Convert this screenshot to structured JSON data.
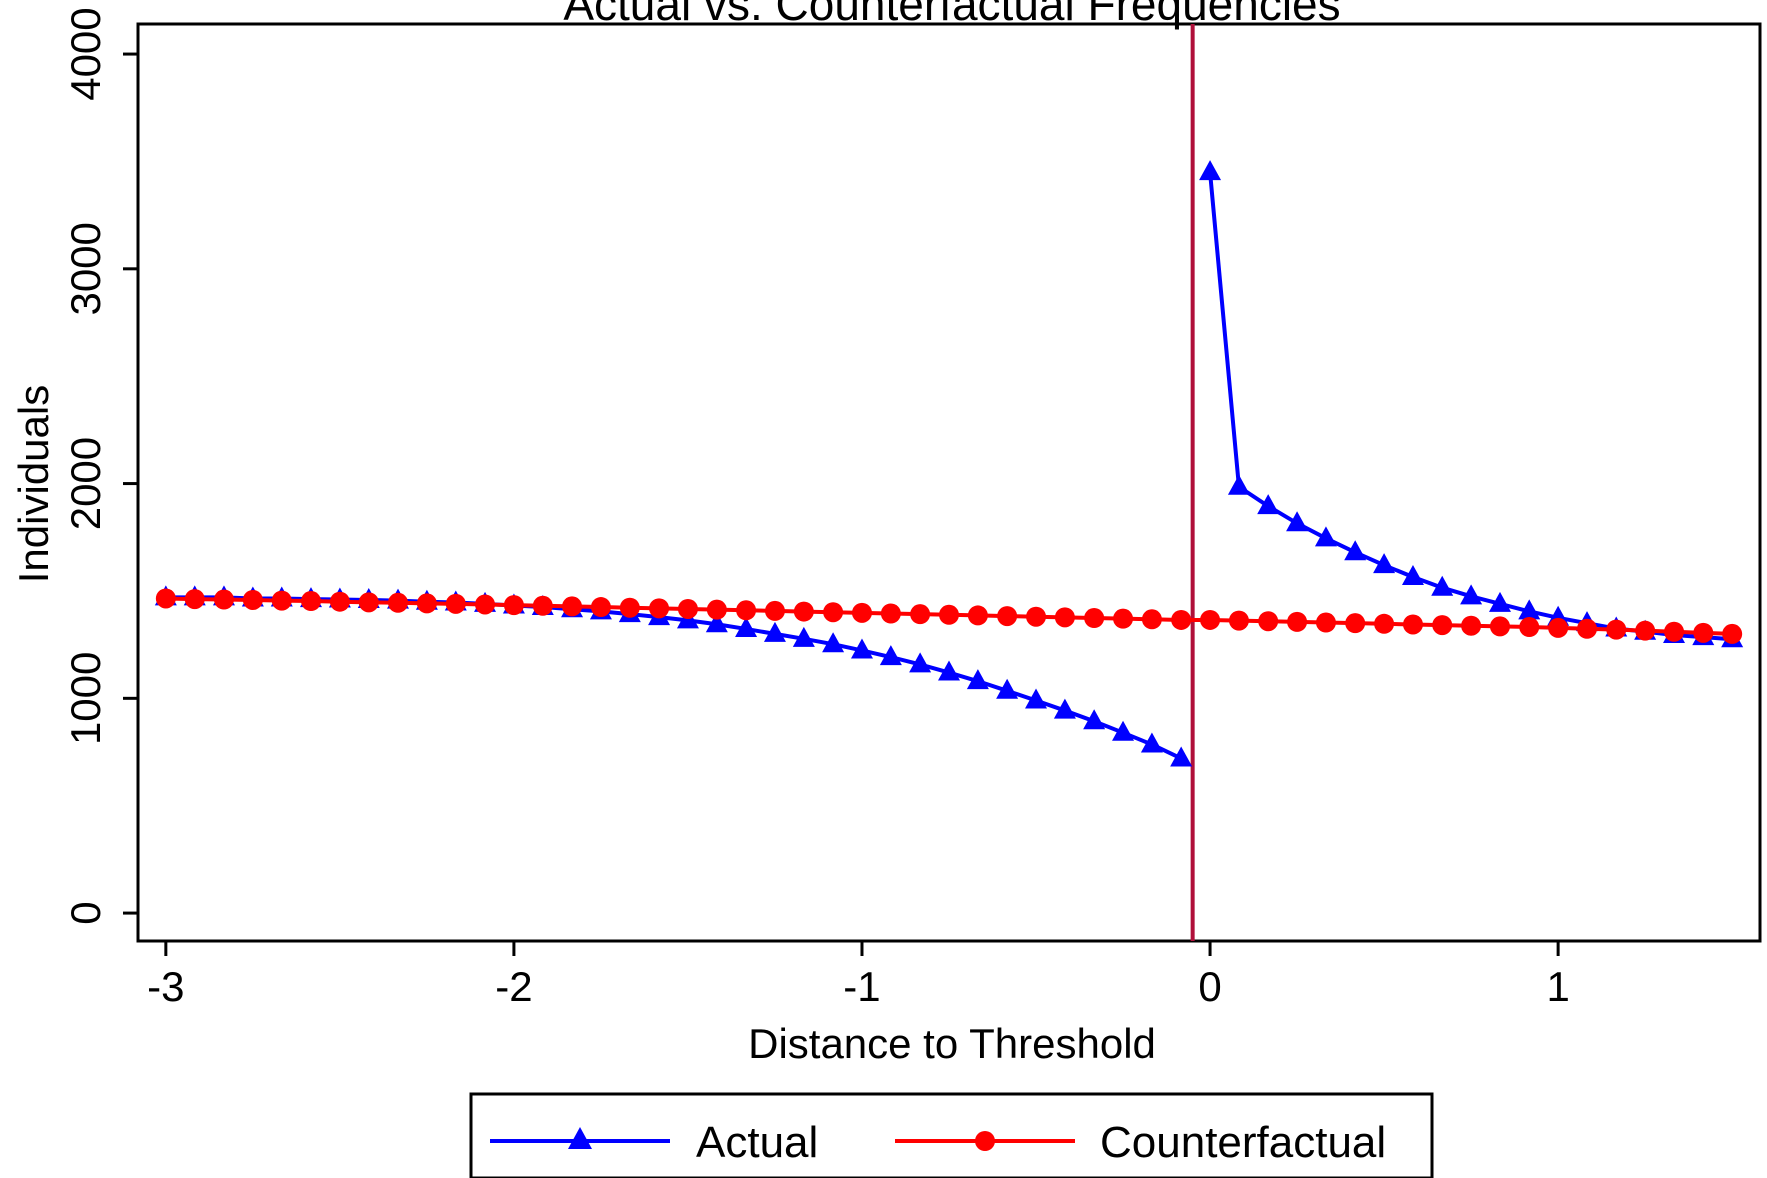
{
  "chart_data": {
    "type": "line",
    "title": "Actual vs. Counterfactual Frequencies",
    "xlabel": "Distance to Threshold",
    "ylabel": "Individuals",
    "xlim": [
      -3.08,
      1.58
    ],
    "ylim": [
      -130,
      4140
    ],
    "xticks": [
      -3,
      -2,
      -1,
      0,
      1
    ],
    "yticks": [
      0,
      1000,
      2000,
      3000,
      4000
    ],
    "xtick_labels": [
      "-3",
      "-2",
      "-1",
      "0",
      "1"
    ],
    "ytick_labels": [
      "0",
      "1000",
      "2000",
      "3000",
      "4000"
    ],
    "grid": false,
    "legend_position": "bottom",
    "threshold_line": {
      "x": -0.05,
      "color": "#b0103a"
    },
    "series": [
      {
        "name": "Actual",
        "color": "#0000ff",
        "marker": "triangle",
        "segments": [
          {
            "x": [
              -3.0,
              -2.917,
              -2.833,
              -2.75,
              -2.667,
              -2.583,
              -2.5,
              -2.417,
              -2.333,
              -2.25,
              -2.167,
              -2.083,
              -2.0,
              -1.917,
              -1.833,
              -1.75,
              -1.667,
              -1.583,
              -1.5,
              -1.417,
              -1.333,
              -1.25,
              -1.167,
              -1.083,
              -1.0,
              -0.917,
              -0.833,
              -0.75,
              -0.667,
              -0.583,
              -0.5,
              -0.417,
              -0.333,
              -0.25,
              -0.167,
              -0.083
            ],
            "y": [
              1470,
              1470,
              1470,
              1465,
              1465,
              1462,
              1460,
              1458,
              1455,
              1450,
              1446,
              1440,
              1432,
              1425,
              1415,
              1405,
              1392,
              1378,
              1363,
              1345,
              1323,
              1300,
              1277,
              1252,
              1223,
              1192,
              1158,
              1120,
              1080,
              1035,
              990,
              943,
              893,
              840,
              785,
              720
            ]
          },
          {
            "x": [
              0.0,
              0.083,
              0.167,
              0.25,
              0.333,
              0.417,
              0.5,
              0.583,
              0.667,
              0.75,
              0.833,
              0.917,
              1.0,
              1.083,
              1.167,
              1.25,
              1.333,
              1.417,
              1.5
            ],
            "y": [
              3450,
              1985,
              1895,
              1815,
              1745,
              1680,
              1620,
              1565,
              1515,
              1475,
              1440,
              1405,
              1375,
              1350,
              1325,
              1310,
              1295,
              1285,
              1275
            ]
          }
        ]
      },
      {
        "name": "Counterfactual",
        "color": "#ff0000",
        "marker": "circle",
        "segments": [
          {
            "x": [
              -3.0,
              -2.917,
              -2.833,
              -2.75,
              -2.667,
              -2.583,
              -2.5,
              -2.417,
              -2.333,
              -2.25,
              -2.167,
              -2.083,
              -2.0,
              -1.917,
              -1.833,
              -1.75,
              -1.667,
              -1.583,
              -1.5,
              -1.417,
              -1.333,
              -1.25,
              -1.167,
              -1.083,
              -1.0,
              -0.917,
              -0.833,
              -0.75,
              -0.667,
              -0.583,
              -0.5,
              -0.417,
              -0.333,
              -0.25,
              -0.167,
              -0.083,
              0.0,
              0.083,
              0.167,
              0.25,
              0.333,
              0.417,
              0.5,
              0.583,
              0.667,
              0.75,
              0.833,
              0.917,
              1.0,
              1.083,
              1.167,
              1.25,
              1.333,
              1.417,
              1.5
            ],
            "y": [
              1465,
              1462,
              1460,
              1458,
              1455,
              1453,
              1450,
              1447,
              1445,
              1442,
              1440,
              1437,
              1434,
              1431,
              1428,
              1425,
              1422,
              1419,
              1416,
              1413,
              1410,
              1407,
              1404,
              1401,
              1398,
              1395,
              1392,
              1389,
              1386,
              1383,
              1380,
              1377,
              1374,
              1371,
              1368,
              1365,
              1365,
              1362,
              1359,
              1356,
              1353,
              1350,
              1347,
              1344,
              1341,
              1338,
              1335,
              1332,
              1328,
              1324,
              1320,
              1315,
              1310,
              1305,
              1300
            ]
          }
        ]
      }
    ]
  }
}
